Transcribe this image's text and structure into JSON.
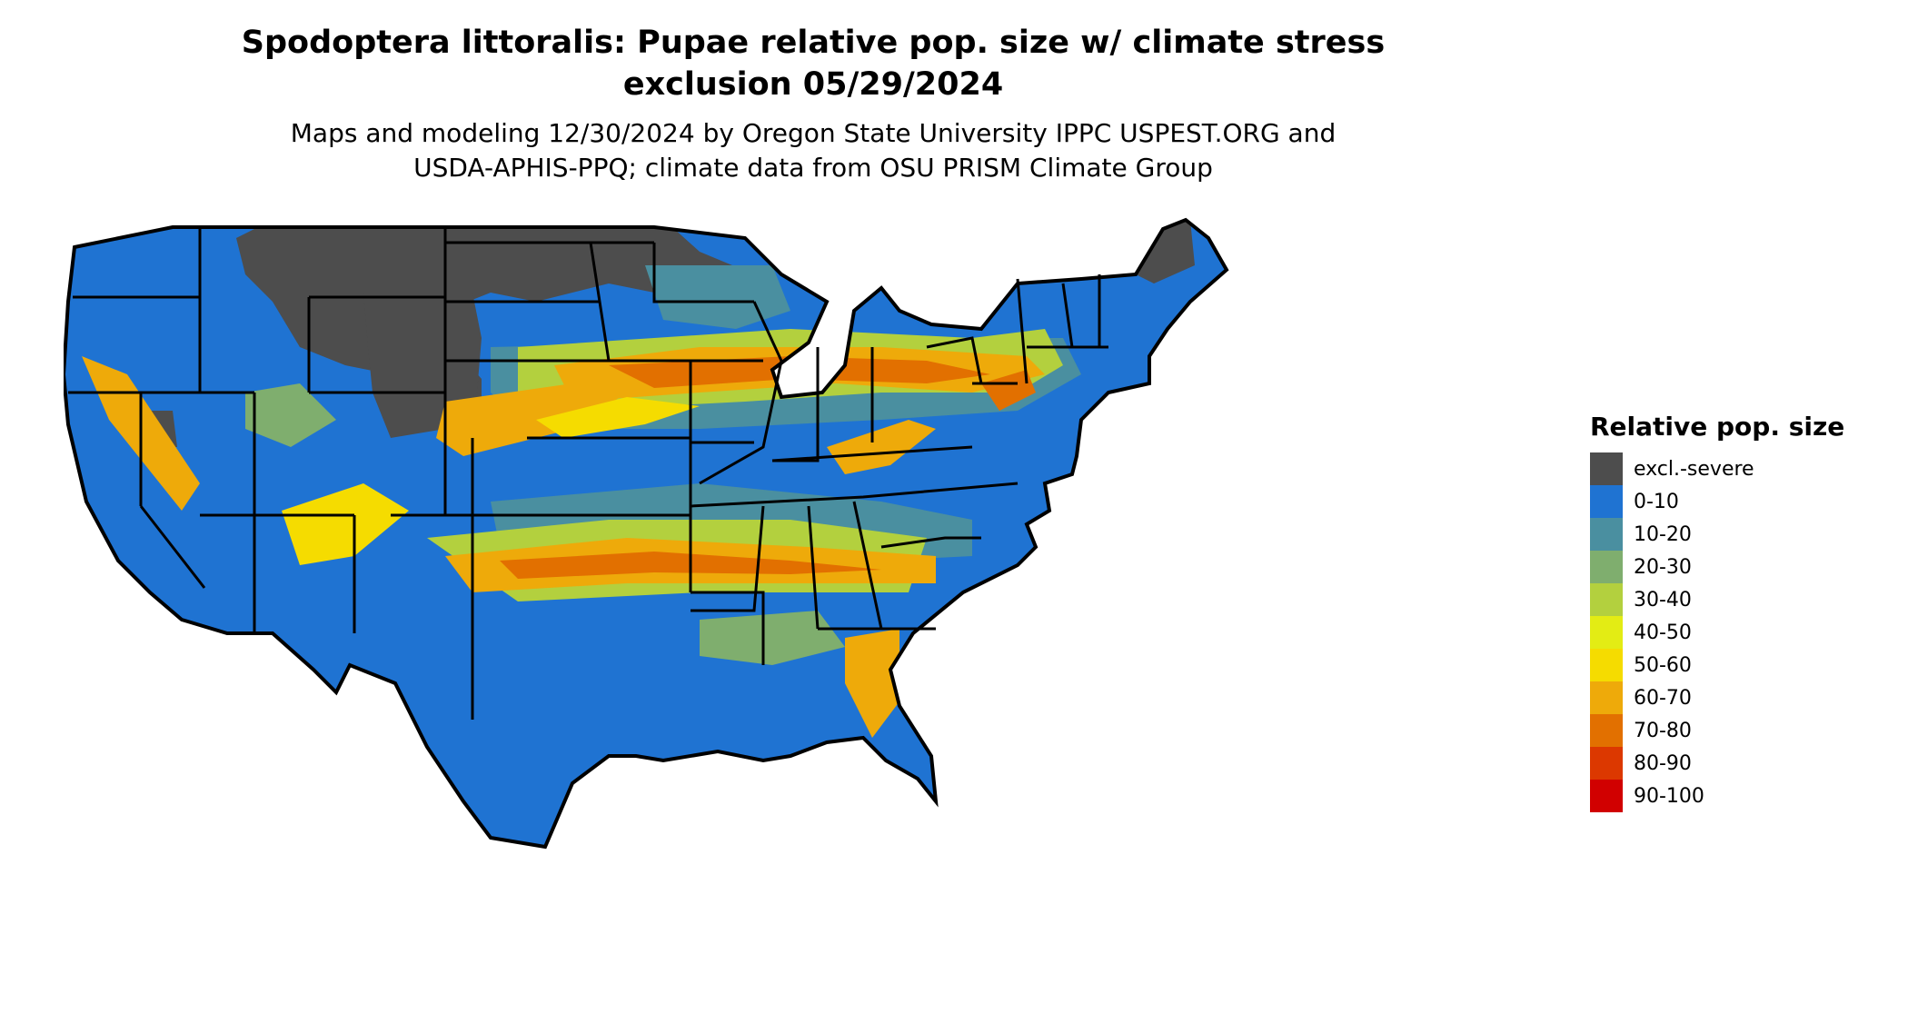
{
  "title_lines": [
    "Spodoptera littoralis: Pupae relative pop. size w/ climate stress",
    "exclusion 05/29/2024"
  ],
  "subtitle_lines": [
    "Maps and modeling 12/30/2024 by Oregon State University IPPC USPEST.ORG and",
    "USDA-APHIS-PPQ; climate data from OSU PRISM Climate Group"
  ],
  "legend": {
    "title": "Relative pop. size",
    "items": [
      {
        "label": "excl.-severe",
        "color": "#4d4d4d"
      },
      {
        "label": "0-10",
        "color": "#1f73d2"
      },
      {
        "label": "10-20",
        "color": "#4a8fa0"
      },
      {
        "label": "20-30",
        "color": "#7fae6e"
      },
      {
        "label": "30-40",
        "color": "#b3d03e"
      },
      {
        "label": "40-50",
        "color": "#e3ec14"
      },
      {
        "label": "50-60",
        "color": "#f5dc00"
      },
      {
        "label": "60-70",
        "color": "#eeaa0a"
      },
      {
        "label": "70-80",
        "color": "#e27000"
      },
      {
        "label": "80-90",
        "color": "#dc3800"
      },
      {
        "label": "90-100",
        "color": "#d10000"
      }
    ]
  }
}
